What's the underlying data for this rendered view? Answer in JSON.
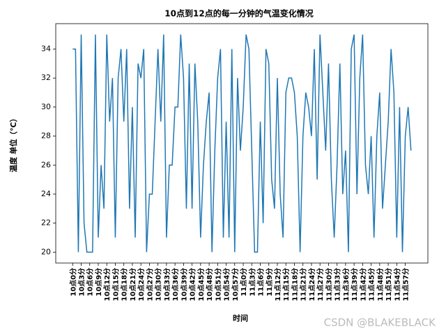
{
  "chart_data": {
    "type": "line",
    "title": "10点到12点的每一分钟的气温变化情况",
    "x_label": "时间",
    "y_label": "温度 单位（℃）",
    "watermark": "CSDN @BLAKEBLACK",
    "color": "#1f77b4",
    "ylim": [
      19.25,
      35.75
    ],
    "yticks": [
      20,
      22,
      24,
      26,
      28,
      30,
      32,
      34
    ],
    "categories": [
      "10点0分",
      null,
      null,
      "10点3分",
      null,
      null,
      "10点6分",
      null,
      null,
      "10点9分",
      null,
      null,
      "10点12分",
      null,
      null,
      "10点15分",
      null,
      null,
      "10点18分",
      null,
      null,
      "10点21分",
      null,
      null,
      "10点24分",
      null,
      null,
      "10点27分",
      null,
      null,
      "10点30分",
      null,
      null,
      "10点33分",
      null,
      null,
      "10点36分",
      null,
      null,
      "10点39分",
      null,
      null,
      "10点42分",
      null,
      null,
      "10点45分",
      null,
      null,
      "10点48分",
      null,
      null,
      "10点51分",
      null,
      null,
      "10点54分",
      null,
      null,
      "10点57分",
      null,
      null,
      "11点0分",
      null,
      null,
      "11点3分",
      null,
      null,
      "11点6分",
      null,
      null,
      "11点9分",
      null,
      null,
      "11点12分",
      null,
      null,
      "11点15分",
      null,
      null,
      "11点18分",
      null,
      null,
      "11点21分",
      null,
      null,
      "11点24分",
      null,
      null,
      "11点27分",
      null,
      null,
      "11点30分",
      null,
      null,
      "11点33分",
      null,
      null,
      "11点36分",
      null,
      null,
      "11点39分",
      null,
      null,
      "11点42分",
      null,
      null,
      "11点45分",
      null,
      null,
      "11点48分",
      null,
      null,
      "11点51分",
      null,
      null,
      "11点54分",
      null,
      null,
      "11点57分",
      null,
      null
    ],
    "values": [
      34,
      34,
      20,
      35,
      22,
      20,
      20,
      20,
      35,
      21,
      26,
      23,
      35,
      29,
      32,
      21,
      32,
      34,
      29,
      34,
      23,
      30,
      21,
      33,
      32,
      34,
      20,
      24,
      24,
      29,
      34,
      29,
      35,
      21,
      26,
      26,
      30,
      30,
      35,
      32,
      23,
      33,
      23,
      33,
      29,
      21,
      26,
      29,
      31,
      20,
      27,
      32,
      34,
      21,
      29,
      21,
      34,
      20,
      32,
      27,
      30,
      35,
      34,
      27,
      20,
      20,
      29,
      22,
      34,
      33,
      25,
      23,
      32,
      24,
      21,
      31,
      32,
      32,
      31,
      28,
      20,
      28,
      31,
      30,
      28,
      34,
      25,
      35,
      31,
      27,
      33,
      25,
      21,
      26,
      33,
      24,
      27,
      20,
      34,
      35,
      24,
      32,
      35,
      26,
      24,
      28,
      21,
      28,
      31,
      23,
      26,
      29,
      34,
      31,
      21,
      30,
      20,
      28,
      30,
      27
    ]
  }
}
